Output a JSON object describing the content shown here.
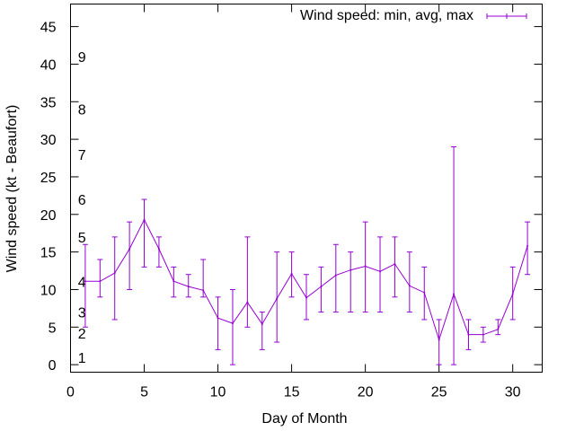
{
  "chart_data": {
    "type": "line",
    "title": "",
    "xlabel": "Day of Month",
    "ylabel": "Wind speed (kt - Beaufort)",
    "xlim": [
      0,
      32
    ],
    "ylim": [
      -1,
      48
    ],
    "xticks": [
      0,
      5,
      10,
      15,
      20,
      25,
      30
    ],
    "yticks": [
      0,
      5,
      10,
      15,
      20,
      25,
      30,
      35,
      40,
      45
    ],
    "xtick_labels": [
      "0",
      "5",
      "10",
      "15",
      "20",
      "25",
      "30"
    ],
    "ytick_labels": [
      "0",
      "5",
      "10",
      "15",
      "20",
      "25",
      "30",
      "35",
      "40",
      "45"
    ],
    "grid": false,
    "legend_position": "top-right",
    "series": [
      {
        "name": "Wind speed: min, avg, max",
        "color": "#9400d3",
        "x": [
          1,
          2,
          3,
          4,
          5,
          6,
          7,
          8,
          9,
          10,
          11,
          12,
          13,
          14,
          15,
          16,
          17,
          18,
          19,
          20,
          21,
          22,
          23,
          24,
          25,
          26,
          27,
          28,
          29,
          30,
          31
        ],
        "avg": [
          11.1,
          11.1,
          12.2,
          15.4,
          19.3,
          15.4,
          11.1,
          10.4,
          9.9,
          6.2,
          5.5,
          8.3,
          5.4,
          8.8,
          12.1,
          8.9,
          10.4,
          11.9,
          12.6,
          13.1,
          12.4,
          13.4,
          10.5,
          9.6,
          3.3,
          9.4,
          4.0,
          4.0,
          4.7,
          9.4,
          15.8
        ],
        "min": [
          5,
          9,
          6,
          10,
          13,
          13,
          9,
          9,
          9,
          2,
          0,
          5,
          2,
          3,
          9,
          6,
          7,
          7,
          7,
          7,
          7,
          9,
          7,
          6,
          0,
          0,
          2,
          3,
          4,
          6,
          12
        ],
        "max": [
          16,
          14,
          17,
          19,
          22,
          17,
          13,
          12,
          14,
          9,
          10,
          17,
          7,
          15,
          15,
          12,
          13,
          16,
          15,
          19,
          17,
          17,
          15,
          13,
          6,
          29,
          6,
          5,
          6,
          13,
          19
        ]
      }
    ],
    "annotations": [
      {
        "text": "1",
        "y": 1.0
      },
      {
        "text": "2",
        "y": 4.2
      },
      {
        "text": "3",
        "y": 7.0
      },
      {
        "text": "4",
        "y": 11.1
      },
      {
        "text": "5",
        "y": 17.0
      },
      {
        "text": "6",
        "y": 22.0
      },
      {
        "text": "7",
        "y": 28.0
      },
      {
        "text": "8",
        "y": 34.0
      },
      {
        "text": "9",
        "y": 41.0
      }
    ]
  }
}
